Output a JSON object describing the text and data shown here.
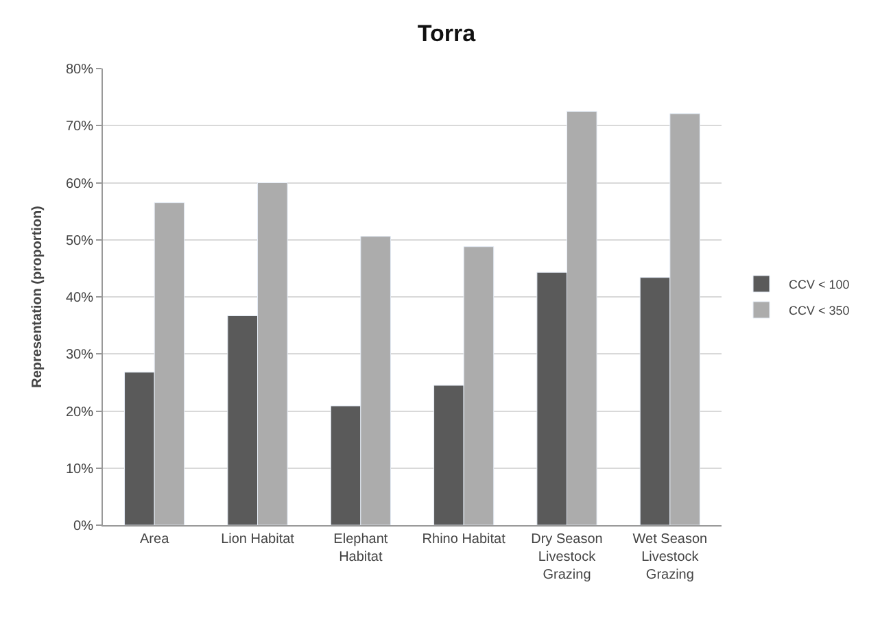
{
  "chart_data": {
    "type": "bar",
    "title": "Torra",
    "ylabel": "Representation (proportion)",
    "categories": [
      "Area",
      "Lion Habitat",
      "Elephant\nHabitat",
      "Rhino Habitat",
      "Dry Season\nLivestock\nGrazing",
      "Wet Season\nLivestock\nGrazing"
    ],
    "series": [
      {
        "name": "CCV < 100",
        "color": "#5a5a5a",
        "values": [
          26.8,
          36.7,
          20.9,
          24.5,
          44.3,
          43.4
        ]
      },
      {
        "name": "CCV < 350",
        "color": "#acacac",
        "values": [
          56.5,
          60.0,
          50.6,
          48.8,
          72.5,
          72.1
        ]
      }
    ],
    "ylim": [
      0,
      80
    ],
    "yticks": [
      {
        "value": 0,
        "label": "0%"
      },
      {
        "value": 10,
        "label": "10%"
      },
      {
        "value": 20,
        "label": "20%"
      },
      {
        "value": 30,
        "label": "30%"
      },
      {
        "value": 40,
        "label": "40%"
      },
      {
        "value": 50,
        "label": "50%"
      },
      {
        "value": 60,
        "label": "60%"
      },
      {
        "value": 70,
        "label": "70%"
      },
      {
        "value": 80,
        "label": "80%"
      }
    ],
    "grid": "y",
    "legend": "right"
  }
}
